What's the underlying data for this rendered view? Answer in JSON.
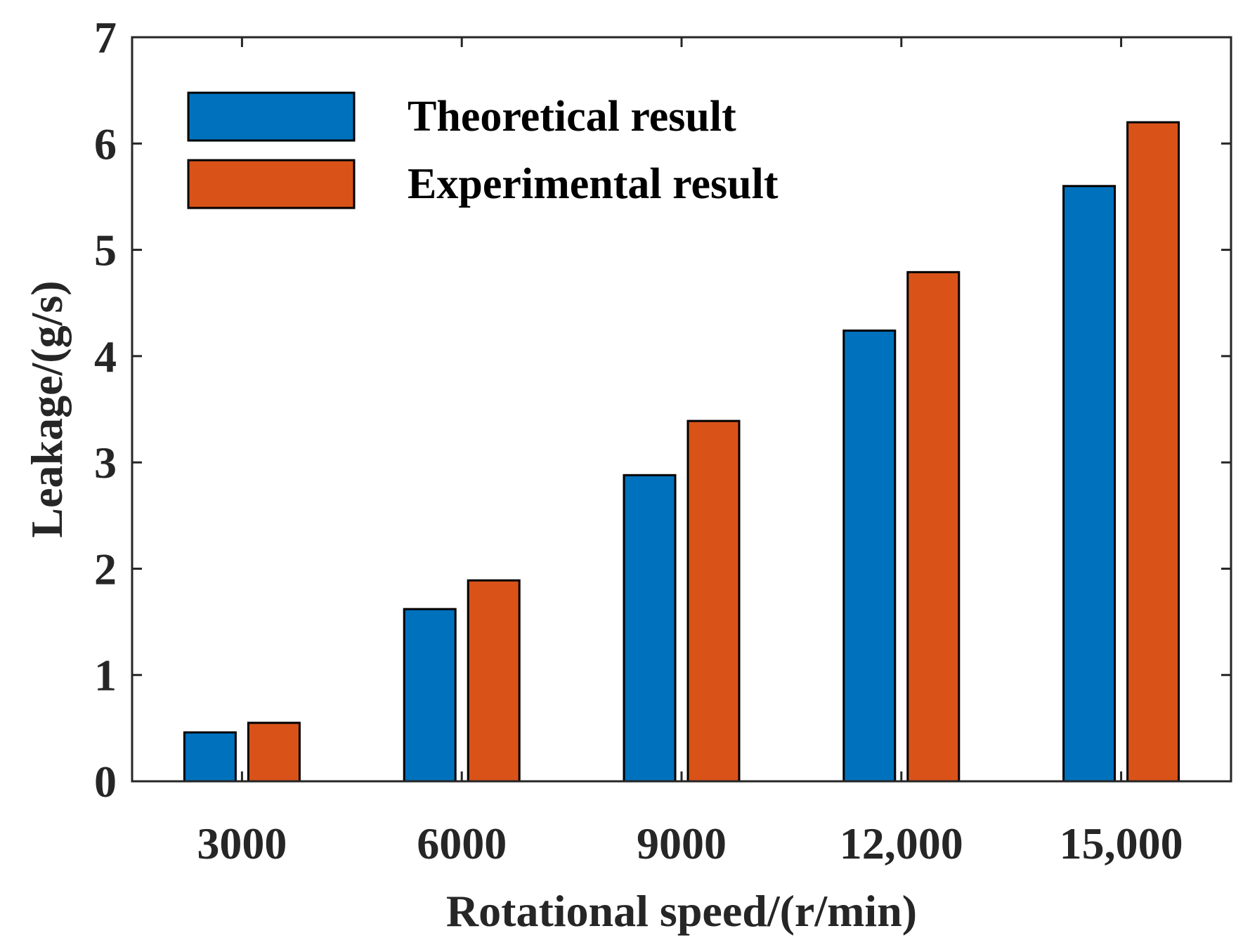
{
  "chart_data": {
    "type": "bar",
    "title": "",
    "xlabel": "Rotational speed/(r/min)",
    "ylabel": "Leakage/(g/s)",
    "categories": [
      "3000",
      "6000",
      "9000",
      "12,000",
      "15,000"
    ],
    "series": [
      {
        "name": "Theoretical result",
        "color": "#0072BD",
        "values": [
          0.46,
          1.62,
          2.88,
          4.24,
          5.6
        ]
      },
      {
        "name": "Experimental result",
        "color": "#D95319",
        "values": [
          0.55,
          1.89,
          3.39,
          4.79,
          6.2
        ]
      }
    ],
    "ylim": [
      0,
      7
    ],
    "yticks": [
      "0",
      "1",
      "2",
      "3",
      "4",
      "5",
      "6",
      "7"
    ],
    "grid": false,
    "legend_position": "top-left"
  }
}
